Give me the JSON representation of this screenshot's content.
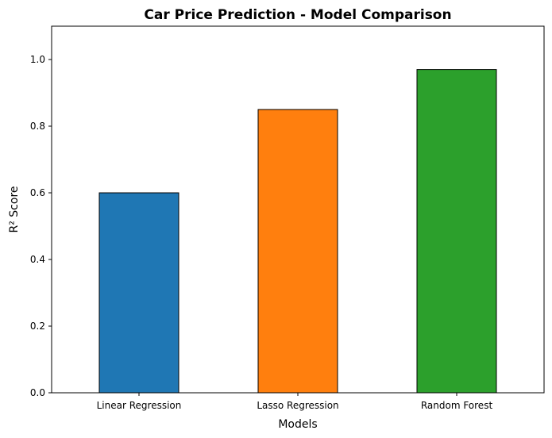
{
  "chart_data": {
    "type": "bar",
    "title": "Car Price Prediction - Model Comparison",
    "xlabel": "Models",
    "ylabel": "R² Score",
    "categories": [
      "Linear Regression",
      "Lasso Regression",
      "Random Forest"
    ],
    "values": [
      0.6,
      0.85,
      0.97
    ],
    "colors": [
      "#1f77b4",
      "#ff7f0e",
      "#2ca02c"
    ],
    "ylim": [
      0,
      1.1
    ],
    "yticks": [
      0.0,
      0.2,
      0.4,
      0.6,
      0.8,
      1.0
    ],
    "ytick_labels": [
      "0.0",
      "0.2",
      "0.4",
      "0.6",
      "0.8",
      "1.0"
    ],
    "grid": false,
    "bar_edge_color": "#000000"
  }
}
